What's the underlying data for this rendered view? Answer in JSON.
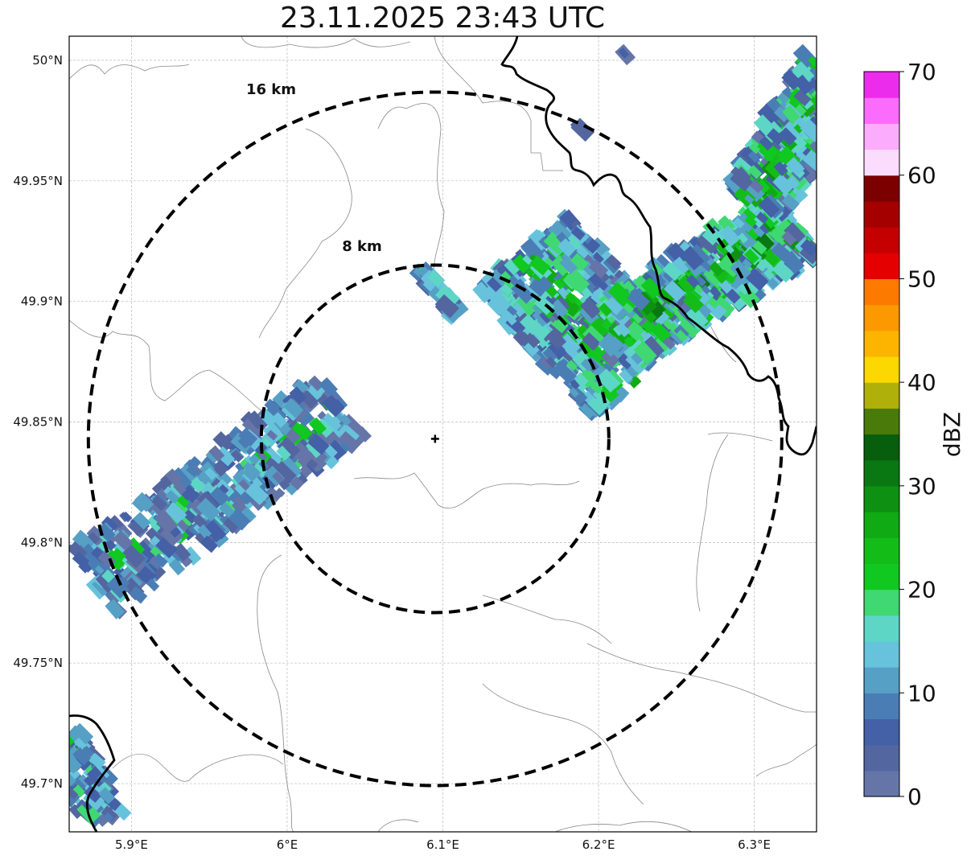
{
  "title": "23.11.2025 23:43 UTC",
  "map": {
    "lon_range": [
      5.86,
      6.34
    ],
    "lat_range": [
      49.68,
      50.01
    ],
    "lon_ticks": [
      {
        "value": 5.9,
        "label": "5.9°E"
      },
      {
        "value": 6.0,
        "label": "6°E"
      },
      {
        "value": 6.1,
        "label": "6.1°E"
      },
      {
        "value": 6.2,
        "label": "6.2°E"
      },
      {
        "value": 6.3,
        "label": "6.3°E"
      }
    ],
    "lat_ticks": [
      {
        "value": 49.7,
        "label": "49.7°N"
      },
      {
        "value": 49.75,
        "label": "49.75°N"
      },
      {
        "value": 49.8,
        "label": "49.8°N"
      },
      {
        "value": 49.85,
        "label": "49.85°N"
      },
      {
        "value": 49.9,
        "label": "49.9°N"
      },
      {
        "value": 49.95,
        "label": "49.95°N"
      },
      {
        "value": 50.0,
        "label": "50°N"
      }
    ],
    "grid": true,
    "center_marker": {
      "lon": 6.095,
      "lat": 49.843,
      "icon": "plus-icon"
    },
    "range_rings": [
      {
        "label": "8 km",
        "radius_km": 8
      },
      {
        "label": "16 km",
        "radius_km": 16
      }
    ]
  },
  "colorbar": {
    "label": "dBZ",
    "ticks": [
      "0",
      "10",
      "20",
      "30",
      "40",
      "50",
      "60",
      "70"
    ],
    "range": [
      0,
      70
    ],
    "step": 2.5,
    "colors": [
      "#6575a8",
      "#5366a0",
      "#4460a6",
      "#4b7db5",
      "#56a0c6",
      "#67c3dc",
      "#5ed6c6",
      "#3fd872",
      "#10c820",
      "#14bc18",
      "#10aa14",
      "#0e9012",
      "#0a7812",
      "#075e0c",
      "#4a7a0a",
      "#b0b00a",
      "#fcd800",
      "#fcb400",
      "#fc9800",
      "#fc7a00",
      "#e40000",
      "#c40000",
      "#a40000",
      "#7c0000",
      "#fcdcfc",
      "#fcacfc",
      "#fc6cfc",
      "#ec2cec"
    ]
  }
}
